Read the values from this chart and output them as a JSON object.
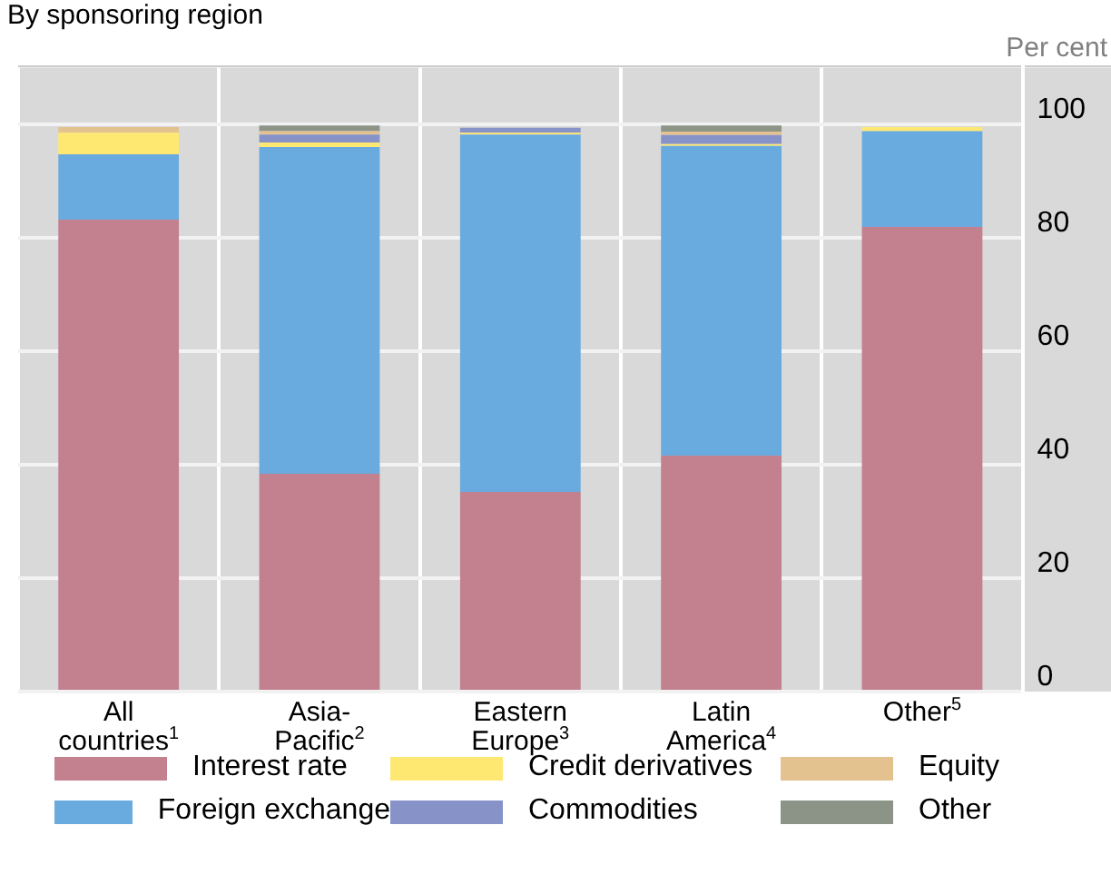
{
  "chart_data": {
    "type": "bar",
    "title": "By sponsoring region",
    "ylabel": "Per cent",
    "stacked": true,
    "grid": true,
    "legend": "bottom",
    "categories": [
      "All countries$^{1}$",
      "Asia-Pacific$^{2}$",
      "Eastern Europe$^{3}$",
      "Latin America$^{4}$",
      "Other$^{5}$"
    ],
    "series": [
      {
        "name": "Interest rate",
        "color": "#c3808f",
        "values": [
          83.2,
          38.4,
          35.2,
          41.6,
          81.9
        ]
      },
      {
        "name": "Foreign exchange",
        "color": "#6aabdf",
        "values": [
          11.5,
          57.6,
          63.0,
          54.6,
          16.9
        ]
      },
      {
        "name": "Credit derivatives",
        "color": "#ffe872",
        "values": [
          3.8,
          0.8,
          0.3,
          0.3,
          0.7
        ]
      },
      {
        "name": "Commodities",
        "color": "#8793c8",
        "values": [
          null,
          1.4,
          0.9,
          1.6,
          0
        ]
      },
      {
        "name": "Equity",
        "color": "#e3c28f",
        "values": [
          1.0,
          0.6,
          null,
          0.6,
          null
        ]
      },
      {
        "name": "Other",
        "color": "#8c9488",
        "values": [
          0,
          1.0,
          0,
          1.1,
          0
        ]
      }
    ],
    "ylim": [
      0,
      110
    ],
    "yticks": [
      0,
      20,
      40,
      60,
      80,
      100
    ]
  }
}
